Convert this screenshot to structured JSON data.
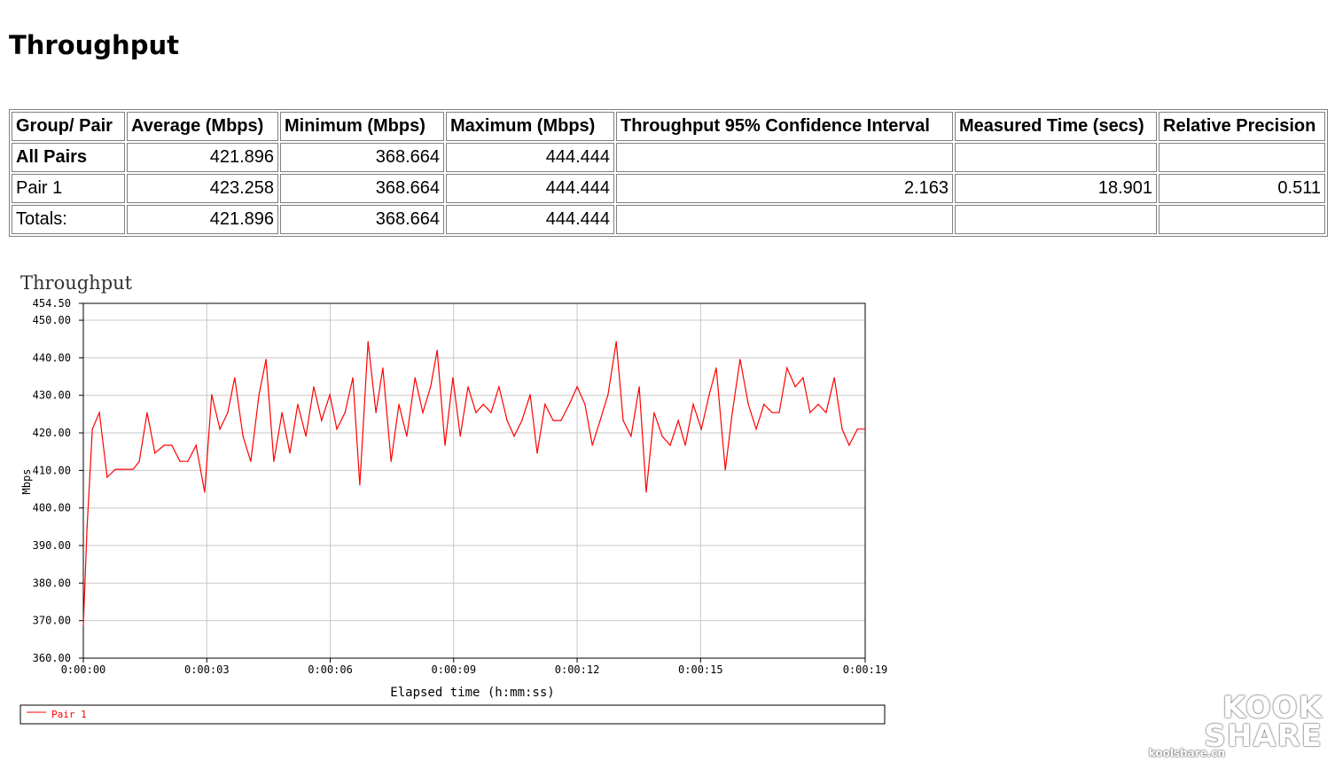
{
  "page_title": "Throughput",
  "table": {
    "headers": [
      "Group/ Pair",
      "Average (Mbps)",
      "Minimum (Mbps)",
      "Maximum (Mbps)",
      "Throughput 95% Confidence Interval",
      "Measured Time (secs)",
      "Relative Precision"
    ],
    "rows": [
      {
        "cells": [
          "All Pairs",
          "421.896",
          "368.664",
          "444.444",
          "",
          "",
          ""
        ],
        "bold": true
      },
      {
        "cells": [
          "Pair 1",
          "423.258",
          "368.664",
          "444.444",
          "2.163",
          "18.901",
          "0.511"
        ],
        "bold": false
      },
      {
        "cells": [
          "Totals:",
          "421.896",
          "368.664",
          "444.444",
          "",
          "",
          ""
        ],
        "bold": false
      }
    ]
  },
  "chart_data": {
    "type": "line",
    "title": "Throughput",
    "xlabel": "Elapsed time (h:mm:ss)",
    "ylabel": "Mbps",
    "xlim": [
      0,
      19
    ],
    "ylim": [
      360,
      454.5
    ],
    "x_ticks": [
      "0:00:00",
      "0:00:03",
      "0:00:06",
      "0:00:09",
      "0:00:12",
      "0:00:15",
      "0:00:19"
    ],
    "x_tick_values": [
      0,
      3,
      6,
      9,
      12,
      15,
      19
    ],
    "y_ticks": [
      "360.00",
      "370.00",
      "380.00",
      "390.00",
      "400.00",
      "410.00",
      "420.00",
      "430.00",
      "440.00",
      "450.00",
      "454.50"
    ],
    "y_tick_values": [
      360,
      370,
      380,
      390,
      400,
      410,
      420,
      430,
      440,
      450,
      454.5
    ],
    "grid": true,
    "legend_position": "bottom",
    "series": [
      {
        "name": "Pair 1",
        "color": "#ff0000",
        "x": [
          0,
          0.09,
          0.22,
          0.39,
          0.58,
          0.78,
          1.21,
          1.36,
          1.55,
          1.74,
          1.96,
          2.15,
          2.35,
          2.54,
          2.74,
          2.95,
          3.12,
          3.32,
          3.51,
          3.68,
          3.88,
          4.07,
          4.27,
          4.44,
          4.63,
          4.83,
          5.02,
          5.21,
          5.41,
          5.6,
          5.79,
          5.99,
          6.16,
          6.36,
          6.55,
          6.72,
          6.92,
          7.11,
          7.28,
          7.48,
          7.67,
          7.86,
          8.06,
          8.25,
          8.44,
          8.6,
          8.79,
          8.98,
          9.16,
          9.35,
          9.54,
          9.72,
          9.91,
          10.1,
          10.3,
          10.47,
          10.66,
          10.86,
          11.03,
          11.22,
          11.42,
          11.61,
          11.81,
          12.0,
          12.19,
          12.37,
          12.56,
          12.75,
          12.95,
          13.12,
          13.31,
          13.51,
          13.68,
          13.87,
          14.07,
          14.26,
          14.46,
          14.63,
          14.82,
          15.02,
          15.21,
          15.38,
          15.6,
          15.77,
          15.96,
          16.16,
          16.35,
          16.54,
          16.74,
          16.91,
          17.1,
          17.3,
          17.49,
          17.66,
          17.86,
          18.05,
          18.25,
          18.44,
          18.61,
          18.81,
          19.0
        ],
        "values": [
          368.7,
          394.7,
          421.0,
          425.4,
          408.2,
          410.3,
          410.3,
          412.4,
          425.4,
          414.6,
          416.7,
          416.7,
          412.4,
          412.4,
          416.7,
          404.2,
          430.2,
          421.0,
          425.4,
          434.7,
          419.1,
          412.4,
          430.2,
          439.6,
          412.4,
          425.4,
          414.6,
          427.6,
          419.1,
          432.3,
          423.3,
          430.2,
          421.0,
          425.4,
          434.7,
          406.1,
          444.3,
          425.4,
          437.3,
          412.4,
          427.6,
          419.1,
          434.7,
          425.4,
          432.3,
          442.0,
          416.7,
          434.7,
          419.1,
          432.3,
          425.4,
          427.6,
          425.4,
          432.3,
          423.3,
          419.1,
          423.3,
          430.2,
          414.6,
          427.6,
          423.3,
          423.3,
          427.6,
          432.3,
          427.6,
          416.7,
          423.3,
          430.2,
          444.3,
          423.3,
          419.1,
          432.3,
          404.2,
          425.4,
          419.1,
          416.7,
          423.3,
          416.7,
          427.6,
          421.0,
          430.2,
          437.3,
          410.1,
          425.4,
          439.6,
          427.6,
          421.0,
          427.6,
          425.4,
          425.4,
          437.3,
          432.3,
          434.7,
          425.4,
          427.6,
          425.4,
          434.7,
          421.0,
          416.7,
          421.0,
          421.0
        ]
      }
    ]
  },
  "watermark": {
    "logo_top": "KOOK",
    "logo_bottom": "SHARE",
    "site": "koolshare.cn"
  }
}
